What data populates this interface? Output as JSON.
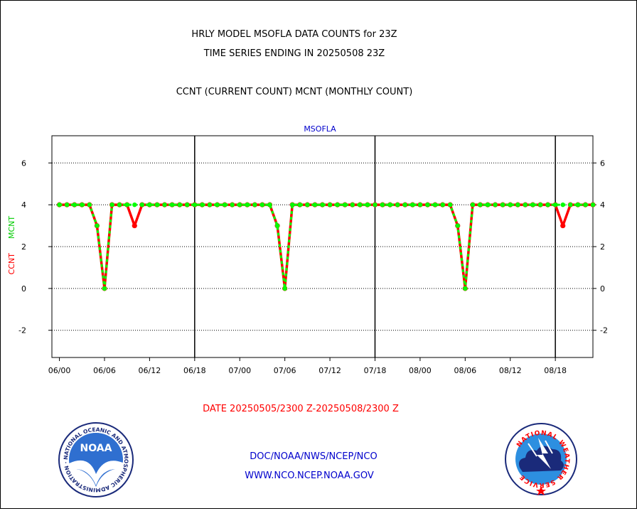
{
  "header": {
    "title_line1": "HRLY MODEL MSOFLA DATA COUNTS for 23Z",
    "title_line2": "TIME SERIES ENDING IN 20250508 23Z",
    "subtitle": "CCNT (CURRENT COUNT) MCNT (MONTHLY COUNT)"
  },
  "footer": {
    "date_range": "DATE 20250505/2300 Z-20250508/2300 Z",
    "link1": "DOC/NOAA/NWS/NCEP/NCO",
    "link2": "WWW.NCO.NCEP.NOAA.GOV",
    "noaa_logo_text": "NOAA",
    "noaa_ring_text": "NATIONAL OCEANIC AND ATMOSPHERIC ADMINISTRATION · U.S. DEPARTMENT OF COMMERCE ·",
    "nws_ring_text": "NATIONAL WEATHER SERVICE"
  },
  "colors": {
    "ccnt": "#ff0000",
    "mcnt": "#00ff00",
    "station": "#0000cc",
    "links": "#0000cc",
    "date": "#ff0000"
  },
  "chart_data": {
    "type": "line",
    "station_label": "MSOFLA",
    "ylabel_ccnt": "CCNT",
    "ylabel_mcnt": "MCNT",
    "ylim": [
      -3.3,
      7.3
    ],
    "yticks": [
      -2,
      0,
      2,
      4,
      6
    ],
    "ytick_labels": [
      "-2",
      "0",
      "2",
      "4",
      "6"
    ],
    "xlim": [
      -1,
      71
    ],
    "xticks": [
      0,
      6,
      12,
      18,
      24,
      30,
      36,
      42,
      48,
      54,
      60,
      66
    ],
    "xtick_labels": [
      "06/00",
      "06/06",
      "06/12",
      "06/18",
      "07/00",
      "07/06",
      "07/12",
      "07/18",
      "08/00",
      "08/06",
      "08/12",
      "08/18"
    ],
    "day_dividers": [
      18,
      42,
      66
    ],
    "grid": "horizontal-dotted",
    "series": [
      {
        "name": "CCNT",
        "values": [
          4,
          4,
          4,
          4,
          4,
          3,
          0,
          4,
          4,
          4,
          3,
          4,
          4,
          4,
          4,
          4,
          4,
          4,
          4,
          4,
          4,
          4,
          4,
          4,
          4,
          4,
          4,
          4,
          4,
          3,
          0,
          4,
          4,
          4,
          4,
          4,
          4,
          4,
          4,
          4,
          4,
          4,
          4,
          4,
          4,
          4,
          4,
          4,
          4,
          4,
          4,
          4,
          4,
          3,
          0,
          4,
          4,
          4,
          4,
          4,
          4,
          4,
          4,
          4,
          4,
          4,
          4,
          3,
          4,
          4,
          4,
          4
        ]
      },
      {
        "name": "MCNT",
        "values": [
          4,
          4,
          4,
          4,
          4,
          3,
          0,
          4,
          4,
          4,
          4,
          4,
          4,
          4,
          4,
          4,
          4,
          4,
          4,
          4,
          4,
          4,
          4,
          4,
          4,
          4,
          4,
          4,
          4,
          3,
          0,
          4,
          4,
          4,
          4,
          4,
          4,
          4,
          4,
          4,
          4,
          4,
          4,
          4,
          4,
          4,
          4,
          4,
          4,
          4,
          4,
          4,
          4,
          3,
          0,
          4,
          4,
          4,
          4,
          4,
          4,
          4,
          4,
          4,
          4,
          4,
          4,
          4,
          4,
          4,
          4,
          4
        ]
      }
    ]
  }
}
